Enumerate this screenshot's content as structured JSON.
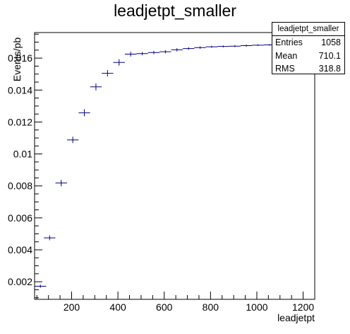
{
  "chart_data": {
    "type": "histogram",
    "title": "leadjetpt_smaller",
    "xlabel": "leadjetpt",
    "ylabel": "Events/pb",
    "xlim": [
      40,
      1250
    ],
    "ylim": [
      0.0009,
      0.0176
    ],
    "xticks": [
      200,
      400,
      600,
      800,
      1000,
      1200
    ],
    "xtick_labels": [
      "200",
      "400",
      "600",
      "800",
      "1000",
      "1200"
    ],
    "yticks": [
      0.002,
      0.004,
      0.006,
      0.008,
      0.01,
      0.012,
      0.014,
      0.016
    ],
    "ytick_labels": [
      "0.002",
      "0.004",
      "0.006",
      "0.008",
      "0.01",
      "0.012",
      "0.014",
      "0.016"
    ],
    "grid": false,
    "series_color": "#000080",
    "points": [
      {
        "x": 65,
        "y": 0.00172,
        "xerr": 25,
        "yerr": 0.0001
      },
      {
        "x": 105,
        "y": 0.00475,
        "xerr": 25,
        "yerr": 0.00015
      },
      {
        "x": 155,
        "y": 0.00818,
        "xerr": 25,
        "yerr": 0.0002
      },
      {
        "x": 205,
        "y": 0.01088,
        "xerr": 25,
        "yerr": 0.0002
      },
      {
        "x": 255,
        "y": 0.01258,
        "xerr": 25,
        "yerr": 0.00022
      },
      {
        "x": 305,
        "y": 0.0142,
        "xerr": 25,
        "yerr": 0.00022
      },
      {
        "x": 355,
        "y": 0.01505,
        "xerr": 25,
        "yerr": 0.0002
      },
      {
        "x": 405,
        "y": 0.01573,
        "xerr": 25,
        "yerr": 0.0002
      },
      {
        "x": 455,
        "y": 0.01625,
        "xerr": 25,
        "yerr": 0.00015
      },
      {
        "x": 505,
        "y": 0.01628,
        "xerr": 25,
        "yerr": 0.0001
      },
      {
        "x": 555,
        "y": 0.01635,
        "xerr": 25,
        "yerr": 0.0001
      },
      {
        "x": 605,
        "y": 0.0164,
        "xerr": 25,
        "yerr": 0.0001
      },
      {
        "x": 655,
        "y": 0.01652,
        "xerr": 25,
        "yerr": 0.0001
      },
      {
        "x": 705,
        "y": 0.0166,
        "xerr": 25,
        "yerr": 8e-05
      },
      {
        "x": 755,
        "y": 0.01666,
        "xerr": 25,
        "yerr": 8e-05
      },
      {
        "x": 805,
        "y": 0.01671,
        "xerr": 25,
        "yerr": 6e-05
      },
      {
        "x": 855,
        "y": 0.01673,
        "xerr": 25,
        "yerr": 6e-05
      },
      {
        "x": 905,
        "y": 0.01675,
        "xerr": 25,
        "yerr": 6e-05
      },
      {
        "x": 955,
        "y": 0.01678,
        "xerr": 25,
        "yerr": 6e-05
      },
      {
        "x": 1005,
        "y": 0.01681,
        "xerr": 25,
        "yerr": 5e-05
      },
      {
        "x": 1055,
        "y": 0.01683,
        "xerr": 25,
        "yerr": 5e-05
      },
      {
        "x": 1105,
        "y": 0.01684,
        "xerr": 25,
        "yerr": 5e-05
      },
      {
        "x": 1155,
        "y": 0.01685,
        "xerr": 25,
        "yerr": 5e-05
      },
      {
        "x": 1205,
        "y": 0.01686,
        "xerr": 25,
        "yerr": 5e-05
      }
    ]
  },
  "stats": {
    "name": "leadjetpt_smaller",
    "entries_label": "Entries",
    "entries_value": "1058",
    "mean_label": "Mean",
    "mean_value": "710.1",
    "rms_label": "RMS",
    "rms_value": "318.8"
  }
}
